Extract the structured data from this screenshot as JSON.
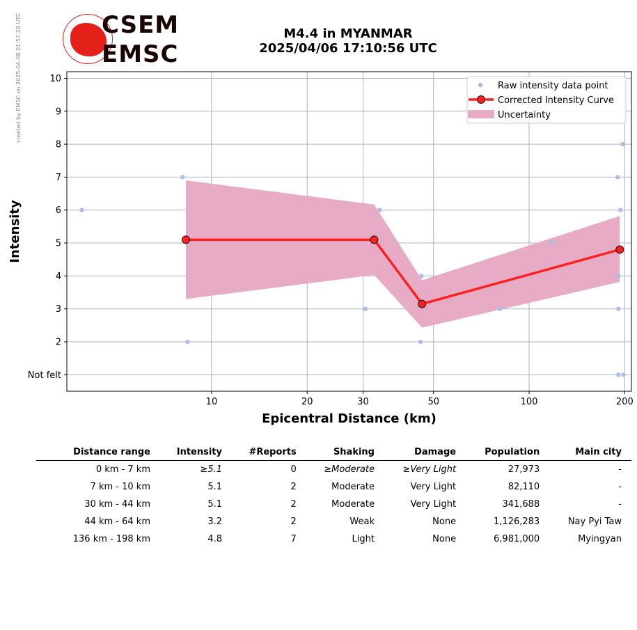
{
  "credit": "created by EMSC on 2025-04-08 01:57:28 UTC",
  "logo": {
    "line1": "CSEM",
    "line2": "EMSC"
  },
  "title": {
    "line1": "M4.4 in MYANMAR",
    "line2": "2025/04/06 17:10:56 UTC"
  },
  "colors": {
    "raw": "#aebde8",
    "curve": "#ff2020",
    "uncertainty": "#e8abc5",
    "grid": "#b0b0b0"
  },
  "chart_data": {
    "type": "scatter",
    "xlabel": "Epicentral Distance (km)",
    "ylabel": "Intensity",
    "xscale": "log",
    "xlim": [
      3.5,
      210
    ],
    "ylim": [
      0.5,
      10.2
    ],
    "xticks": [
      10,
      20,
      30,
      50,
      100,
      200
    ],
    "yticks": [
      {
        "value": 1,
        "label": "Not felt"
      },
      {
        "value": 2,
        "label": "2"
      },
      {
        "value": 3,
        "label": "3"
      },
      {
        "value": 4,
        "label": "4"
      },
      {
        "value": 5,
        "label": "5"
      },
      {
        "value": 6,
        "label": "6"
      },
      {
        "value": 7,
        "label": "7"
      },
      {
        "value": 8,
        "label": "8"
      },
      {
        "value": 9,
        "label": "9"
      },
      {
        "value": 10,
        "label": "10"
      }
    ],
    "grid": true,
    "legend_position": "top-right",
    "legend": [
      "Raw intensity data point",
      "Corrected Intensity Curve",
      "Uncertainty"
    ],
    "raw_points": [
      {
        "x": 3.9,
        "y": 6
      },
      {
        "x": 8.1,
        "y": 7
      },
      {
        "x": 8.4,
        "y": 2
      },
      {
        "x": 30.5,
        "y": 3
      },
      {
        "x": 33.8,
        "y": 6
      },
      {
        "x": 45.5,
        "y": 2
      },
      {
        "x": 45.8,
        "y": 4
      },
      {
        "x": 81,
        "y": 3
      },
      {
        "x": 118,
        "y": 5
      },
      {
        "x": 190,
        "y": 7
      },
      {
        "x": 191,
        "y": 4
      },
      {
        "x": 191,
        "y": 3
      },
      {
        "x": 191,
        "y": 1
      },
      {
        "x": 194,
        "y": 6
      },
      {
        "x": 197,
        "y": 8
      },
      {
        "x": 198,
        "y": 1
      }
    ],
    "curve": [
      {
        "x": 8.3,
        "y": 5.1
      },
      {
        "x": 32.5,
        "y": 5.1
      },
      {
        "x": 46,
        "y": 3.15
      },
      {
        "x": 193,
        "y": 4.8
      }
    ],
    "uncertainty": [
      {
        "x": 8.3,
        "lower": 3.3,
        "upper": 6.9
      },
      {
        "x": 32.5,
        "lower": 4.03,
        "upper": 6.17
      },
      {
        "x": 46,
        "lower": 2.43,
        "upper": 3.87
      },
      {
        "x": 193,
        "lower": 3.82,
        "upper": 5.82
      }
    ]
  },
  "table": {
    "headers": [
      "Distance range",
      "Intensity",
      "#Reports",
      "Shaking",
      "Damage",
      "Population",
      "Main city"
    ],
    "rows": [
      {
        "range": "0 km -    7 km",
        "intensity": "≥5.1",
        "reports": "0",
        "shaking": "≥Moderate",
        "damage": "≥Very Light",
        "population": "27,973",
        "city": "-"
      },
      {
        "range": "7 km -   10 km",
        "intensity": "5.1",
        "reports": "2",
        "shaking": "Moderate",
        "damage": "Very Light",
        "population": "82,110",
        "city": "-"
      },
      {
        "range": "30 km -   44 km",
        "intensity": "5.1",
        "reports": "2",
        "shaking": "Moderate",
        "damage": "Very Light",
        "population": "341,688",
        "city": "-"
      },
      {
        "range": "44 km -   64 km",
        "intensity": "3.2",
        "reports": "2",
        "shaking": "Weak",
        "damage": "None",
        "population": "1,126,283",
        "city": "Nay Pyi Taw"
      },
      {
        "range": "136 km -  198 km",
        "intensity": "4.8",
        "reports": "7",
        "shaking": "Light",
        "damage": "None",
        "population": "6,981,000",
        "city": "Myingyan"
      }
    ]
  }
}
